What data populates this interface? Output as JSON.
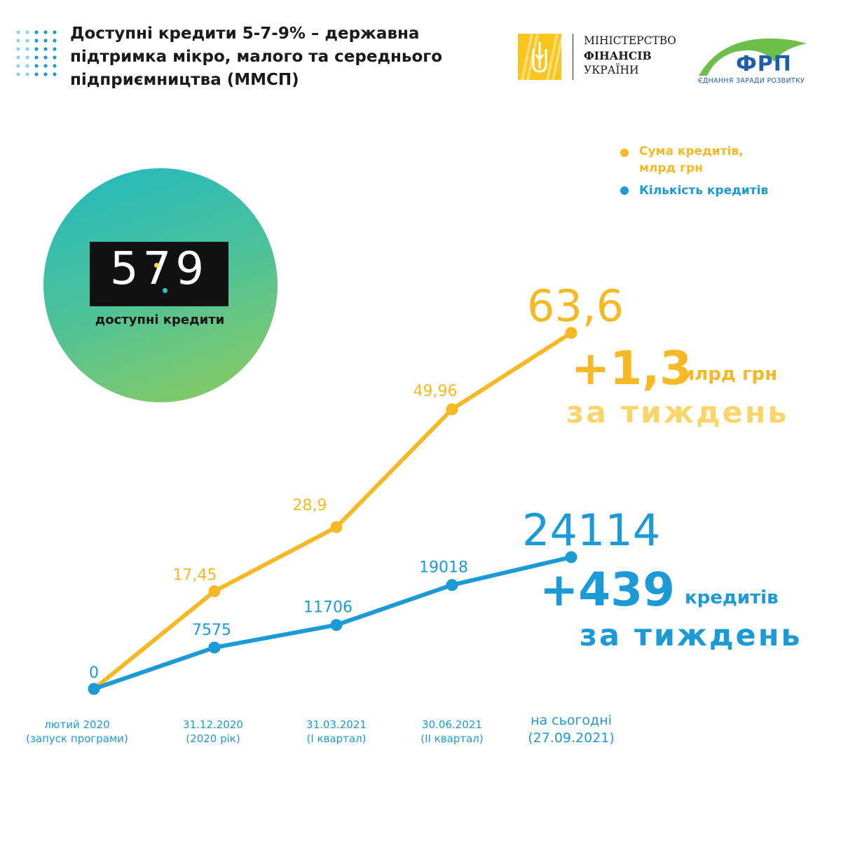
{
  "header": {
    "title_lines": [
      "Доступні кредити 5-7-9% – державна",
      "підтримка мікро, малого та середнього",
      "підприємництва (ММСП)"
    ]
  },
  "minfin": {
    "line1": "МІНІСТЕРСТВО",
    "line2": "ФІНАНСІВ",
    "line3": "УКРАЇНИ"
  },
  "frp": {
    "name": "ФРП",
    "tagline": "ЄДНАННЯ ЗАРАДИ РОЗВИТКУ"
  },
  "program_logo": {
    "number": "579",
    "caption": "доступні кредити"
  },
  "legend": {
    "sum_line1": "Сума кредитів,",
    "sum_line2": "млрд грн",
    "count": "Кількість кредитів"
  },
  "colors": {
    "sum": "#f5b925",
    "count": "#1b9ad6",
    "logo_gradient_start": "#20b8bf",
    "logo_gradient_end": "#8fcb5c"
  },
  "highlights": {
    "sum_increase": "+1,3",
    "sum_unit": "млрд грн",
    "sum_period": "за тиждень",
    "count_increase": "+439",
    "count_unit": "кредитів",
    "count_period": "за тиждень"
  },
  "chart_data": {
    "type": "line",
    "categories": [
      [
        "лютий 2020",
        "(запуск програми)"
      ],
      [
        "31.12.2020",
        "(2020 рік)"
      ],
      [
        "31.03.2021",
        "(І квартал)"
      ],
      [
        "30.06.2021",
        "(ІІ квартал)"
      ],
      [
        "на сьогодні",
        "(27.09.2021)"
      ]
    ],
    "series": [
      {
        "name": "Сума кредитів, млрд грн",
        "color": "#f5b925",
        "values": [
          0,
          17.45,
          28.9,
          49.96,
          63.6
        ],
        "labels": [
          "",
          "17,45",
          "28,9",
          "49,96",
          "63,6"
        ]
      },
      {
        "name": "Кількість кредитів",
        "color": "#1b9ad6",
        "values": [
          0,
          7575,
          11706,
          19018,
          24114
        ],
        "labels": [
          "0",
          "7575",
          "11706",
          "19018",
          "24114"
        ]
      }
    ],
    "grid": false,
    "legend_position": "top-right"
  }
}
